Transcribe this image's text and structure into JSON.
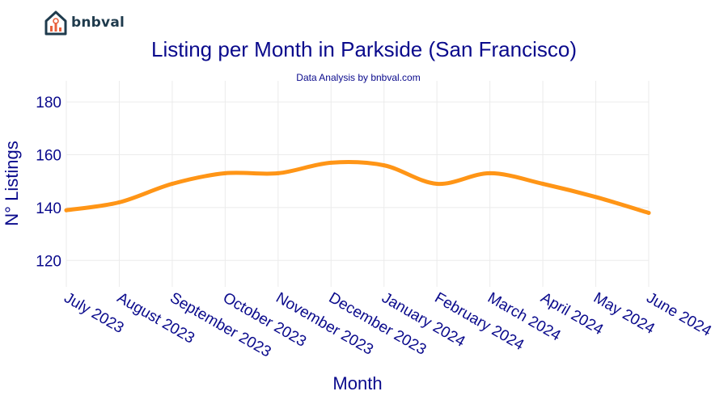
{
  "brand": {
    "name": "bnbval",
    "accent": "#e8603c",
    "dark": "#1f3b4d"
  },
  "chart_data": {
    "type": "line",
    "title": "Listing per Month in Parkside (San Francisco)",
    "subtitle": "Data Analysis by bnbval.com",
    "xlabel": "Month",
    "ylabel": "N° Listings",
    "categories": [
      "July 2023",
      "August 2023",
      "September 2023",
      "October 2023",
      "November 2023",
      "December 2023",
      "January 2024",
      "February 2024",
      "March 2024",
      "April 2024",
      "May 2024",
      "June 2024"
    ],
    "series": [
      {
        "values": [
          139,
          142,
          149,
          153,
          153,
          157,
          156,
          149,
          153,
          149,
          144,
          138
        ],
        "color": "#ff9516"
      }
    ],
    "yticks": [
      120,
      140,
      160,
      180
    ],
    "ylim": [
      110,
      188
    ],
    "grid": true,
    "text_color": "#0a0a8c"
  }
}
